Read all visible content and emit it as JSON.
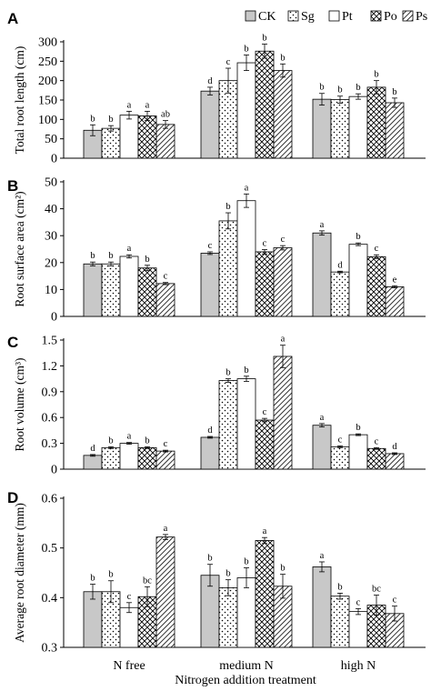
{
  "chart_data": [
    {
      "type": "bar",
      "panel": "A",
      "ylabel": "Total root length (cm)",
      "ylim": [
        0,
        300
      ],
      "yticks": [
        "0",
        "50",
        "100",
        "150",
        "200",
        "250",
        "300"
      ],
      "categories": [
        "N free",
        "medium N",
        "high N"
      ],
      "series": [
        {
          "name": "CK",
          "values": [
            72,
            173,
            152
          ],
          "errors": [
            14,
            10,
            15
          ],
          "letters": [
            "b",
            "d",
            "b"
          ]
        },
        {
          "name": "Sg",
          "values": [
            77,
            200,
            151
          ],
          "errors": [
            7,
            32,
            9
          ],
          "letters": [
            "b",
            "c",
            "b"
          ]
        },
        {
          "name": "Pt",
          "values": [
            111,
            246,
            159
          ],
          "errors": [
            10,
            20,
            7
          ],
          "letters": [
            "a",
            "b",
            "b"
          ]
        },
        {
          "name": "Po",
          "values": [
            109,
            276,
            183
          ],
          "errors": [
            12,
            18,
            17
          ],
          "letters": [
            "a",
            "b",
            "b"
          ]
        },
        {
          "name": "Ps",
          "values": [
            87,
            226,
            143
          ],
          "errors": [
            10,
            17,
            12
          ],
          "letters": [
            "ab",
            "b",
            "b"
          ]
        }
      ]
    },
    {
      "type": "bar",
      "panel": "B",
      "ylabel": "Root surface area (cm²)",
      "ylim": [
        0,
        50
      ],
      "yticks": [
        "0",
        "10",
        "20",
        "30",
        "40",
        "50"
      ],
      "categories": [
        "N free",
        "medium N",
        "high N"
      ],
      "series": [
        {
          "name": "CK",
          "values": [
            19.5,
            23.5,
            31
          ],
          "errors": [
            0.7,
            0.5,
            0.8
          ],
          "letters": [
            "b",
            "c",
            "a"
          ]
        },
        {
          "name": "Sg",
          "values": [
            19.5,
            35.5,
            16.5
          ],
          "errors": [
            0.7,
            3,
            0.3
          ],
          "letters": [
            "b",
            "b",
            "d"
          ]
        },
        {
          "name": "Pt",
          "values": [
            22.3,
            43,
            26.8
          ],
          "errors": [
            0.6,
            2.5,
            0.5
          ],
          "letters": [
            "a",
            "a",
            "b"
          ]
        },
        {
          "name": "Po",
          "values": [
            18,
            24,
            22.2
          ],
          "errors": [
            1,
            0.8,
            0.7
          ],
          "letters": [
            "b",
            "c",
            "c"
          ]
        },
        {
          "name": "Ps",
          "values": [
            12.2,
            25.5,
            11
          ],
          "errors": [
            0.4,
            0.8,
            0.4
          ],
          "letters": [
            "c",
            "c",
            "e"
          ]
        }
      ]
    },
    {
      "type": "bar",
      "panel": "C",
      "ylabel": "Root volume (cm³)",
      "ylim": [
        0,
        1.5
      ],
      "yticks": [
        "0",
        "0.3",
        "0.6",
        "0.9",
        "1.2",
        "1.5"
      ],
      "categories": [
        "N free",
        "medium N",
        "high N"
      ],
      "series": [
        {
          "name": "CK",
          "values": [
            0.16,
            0.37,
            0.51
          ],
          "errors": [
            0.01,
            0.01,
            0.02
          ],
          "letters": [
            "d",
            "d",
            "a"
          ]
        },
        {
          "name": "Sg",
          "values": [
            0.25,
            1.03,
            0.26
          ],
          "errors": [
            0.01,
            0.02,
            0.01
          ],
          "letters": [
            "b",
            "b",
            "c"
          ]
        },
        {
          "name": "Pt",
          "values": [
            0.3,
            1.05,
            0.4
          ],
          "errors": [
            0.01,
            0.03,
            0.01
          ],
          "letters": [
            "a",
            "b",
            "b"
          ]
        },
        {
          "name": "Po",
          "values": [
            0.25,
            0.57,
            0.24
          ],
          "errors": [
            0.01,
            0.02,
            0.01
          ],
          "letters": [
            "b",
            "c",
            "c"
          ]
        },
        {
          "name": "Ps",
          "values": [
            0.21,
            1.31,
            0.18
          ],
          "errors": [
            0.01,
            0.13,
            0.01
          ],
          "letters": [
            "c",
            "a",
            "d"
          ]
        }
      ]
    },
    {
      "type": "bar",
      "panel": "D",
      "ylabel": "Average root diameter (mm)",
      "ylim": [
        0.3,
        0.6
      ],
      "yticks": [
        "0.3",
        "0.4",
        "0.5",
        "0.6"
      ],
      "categories": [
        "N free",
        "medium N",
        "high N"
      ],
      "xlabel": "Nitrogen addition treatment",
      "series": [
        {
          "name": "CK",
          "values": [
            0.412,
            0.445,
            0.462
          ],
          "errors": [
            0.015,
            0.022,
            0.01
          ],
          "letters": [
            "b",
            "b",
            "a"
          ]
        },
        {
          "name": "Sg",
          "values": [
            0.412,
            0.42,
            0.403
          ],
          "errors": [
            0.022,
            0.016,
            0.006
          ],
          "letters": [
            "b",
            "b",
            "b"
          ]
        },
        {
          "name": "Pt",
          "values": [
            0.38,
            0.44,
            0.372
          ],
          "errors": [
            0.01,
            0.02,
            0.006
          ],
          "letters": [
            "c",
            "b",
            "c"
          ]
        },
        {
          "name": "Po",
          "values": [
            0.402,
            0.515,
            0.385
          ],
          "errors": [
            0.02,
            0.006,
            0.02
          ],
          "letters": [
            "bc",
            "a",
            "bc"
          ]
        },
        {
          "name": "Ps",
          "values": [
            0.522,
            0.423,
            0.368
          ],
          "errors": [
            0.005,
            0.024,
            0.015
          ],
          "letters": [
            "a",
            "b",
            "c"
          ]
        }
      ]
    }
  ],
  "legend": {
    "placement": "top-right",
    "items": [
      {
        "label": "CK",
        "pattern": "gray"
      },
      {
        "label": "Sg",
        "pattern": "dots"
      },
      {
        "label": "Pt",
        "pattern": "white"
      },
      {
        "label": "Po",
        "pattern": "cross-hatch"
      },
      {
        "label": "Ps",
        "pattern": "diagonal"
      }
    ]
  },
  "colors": {
    "ck_fill": "#c8c8c8",
    "ink": "#000000",
    "paper": "#ffffff"
  }
}
